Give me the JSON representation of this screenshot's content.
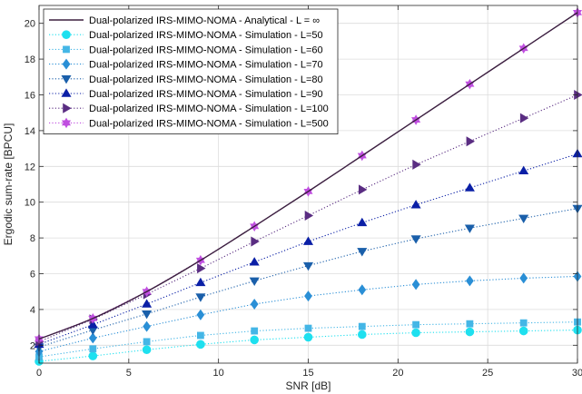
{
  "chart_data": {
    "type": "line",
    "xlabel": "SNR [dB]",
    "ylabel": "Ergodic sum-rate [BPCU]",
    "xlim": [
      0,
      30
    ],
    "ylim": [
      1,
      21
    ],
    "xticks": [
      0,
      5,
      10,
      15,
      20,
      25,
      30
    ],
    "yticks": [
      2,
      4,
      6,
      8,
      10,
      12,
      14,
      16,
      18,
      20
    ],
    "grid": true,
    "legend_position": "top-left",
    "x": [
      0,
      3,
      6,
      9,
      12,
      15,
      18,
      21,
      24,
      27,
      30
    ],
    "series": [
      {
        "name": "Dual-polarized IRS-MIMO-NOMA - Analytical - L = ∞",
        "style": "solid",
        "marker": "none",
        "color": "#3b1f3f",
        "values": [
          2.35,
          3.5,
          5.0,
          6.75,
          8.65,
          10.6,
          12.6,
          14.6,
          16.6,
          18.6,
          20.6
        ]
      },
      {
        "name": "Dual-polarized IRS-MIMO-NOMA - Simulation - L=50",
        "style": "dotted",
        "marker": "circle",
        "color": "#1ee0ef",
        "values": [
          1.1,
          1.4,
          1.75,
          2.05,
          2.3,
          2.45,
          2.6,
          2.7,
          2.75,
          2.8,
          2.85
        ]
      },
      {
        "name": "Dual-polarized IRS-MIMO-NOMA - Simulation - L=60",
        "style": "dotted",
        "marker": "square",
        "color": "#44b6e6",
        "values": [
          1.35,
          1.8,
          2.2,
          2.55,
          2.8,
          2.95,
          3.05,
          3.15,
          3.2,
          3.25,
          3.3
        ]
      },
      {
        "name": "Dual-polarized IRS-MIMO-NOMA - Simulation - L=70",
        "style": "dotted",
        "marker": "diamond",
        "color": "#2a8fd6",
        "values": [
          1.65,
          2.4,
          3.05,
          3.7,
          4.3,
          4.75,
          5.1,
          5.4,
          5.6,
          5.75,
          5.85
        ]
      },
      {
        "name": "Dual-polarized IRS-MIMO-NOMA - Simulation - L=80",
        "style": "dotted",
        "marker": "triangle-down",
        "color": "#1a5faa",
        "values": [
          1.9,
          2.85,
          3.75,
          4.7,
          5.6,
          6.45,
          7.25,
          7.95,
          8.55,
          9.1,
          9.65
        ]
      },
      {
        "name": "Dual-polarized IRS-MIMO-NOMA - Simulation - L=90",
        "style": "dotted",
        "marker": "triangle-up",
        "color": "#0a1fa6",
        "values": [
          2.05,
          3.15,
          4.3,
          5.5,
          6.65,
          7.8,
          8.85,
          9.85,
          10.8,
          11.75,
          12.7
        ]
      },
      {
        "name": "Dual-polarized IRS-MIMO-NOMA - Simulation - L=100",
        "style": "dotted",
        "marker": "triangle-right",
        "color": "#5a2d82",
        "values": [
          2.2,
          3.45,
          4.85,
          6.3,
          7.8,
          9.25,
          10.7,
          12.1,
          13.4,
          14.7,
          16.0
        ]
      },
      {
        "name": "Dual-polarized IRS-MIMO-NOMA - Simulation - L=500",
        "style": "dotted",
        "marker": "hexagram",
        "color": "#c04fe0",
        "values": [
          2.35,
          3.5,
          5.0,
          6.75,
          8.65,
          10.6,
          12.6,
          14.6,
          16.6,
          18.6,
          20.6
        ]
      }
    ]
  }
}
